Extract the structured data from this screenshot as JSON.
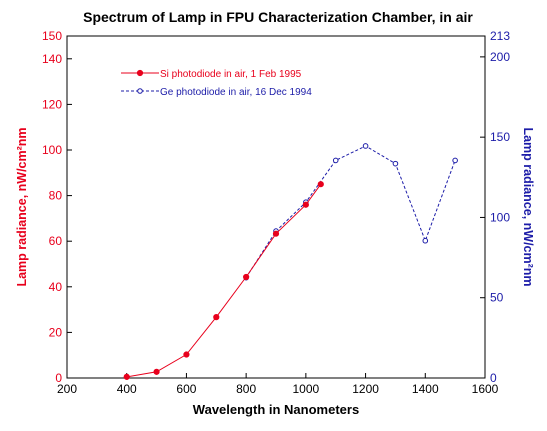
{
  "chart_data": {
    "type": "line",
    "title": "Spectrum of Lamp in FPU  Characterization Chamber, in air",
    "xlabel": "Wavelength in Nanometers",
    "ylabel_left": "Lamp radiance, nW/cm²nm",
    "ylabel_right": "Lamp radiance, nW/cm²nm",
    "xlim": [
      200,
      1600
    ],
    "ylim_left": [
      0,
      150
    ],
    "ylim_right": [
      0,
      213
    ],
    "x_ticks": [
      "200",
      "400",
      "600",
      "800",
      "1000",
      "1200",
      "1400",
      "1600"
    ],
    "y_ticks_left": [
      "0",
      "20",
      "40",
      "60",
      "80",
      "100",
      "120",
      "140",
      "150"
    ],
    "y_ticks_right": [
      "0",
      "50",
      "100",
      "150",
      "200",
      "213"
    ],
    "grid": false,
    "legend_position": "top-left",
    "series": [
      {
        "name": "Si photodiode in air, 1 Feb 1995",
        "axis": "left",
        "color": "#e8001c",
        "style": "solid",
        "marker": "filled-circle",
        "x": [
          400,
          500,
          600,
          700,
          800,
          900,
          1000,
          1050
        ],
        "y": [
          0.5,
          2.7,
          10.3,
          26.7,
          44.3,
          63.3,
          76.0,
          85.0
        ]
      },
      {
        "name": "Ge photodiode in air, 16 Dec 1994",
        "axis": "right",
        "color": "#1c1ca8",
        "style": "dashed",
        "marker": "open-circle",
        "x": [
          800,
          900,
          1000,
          1100,
          1200,
          1300,
          1400,
          1500
        ],
        "y": [
          62.5,
          91.5,
          109.5,
          135.5,
          144.5,
          133.5,
          85.5,
          135.5
        ]
      }
    ]
  }
}
